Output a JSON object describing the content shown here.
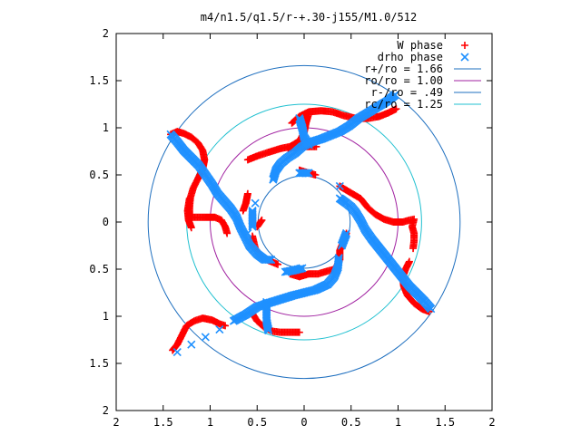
{
  "chart_data": {
    "type": "scatter",
    "title": "m4/n1.5/q1.5/r-+.30-j155/M1.0/512",
    "xlim": [
      -2,
      2
    ],
    "ylim": [
      -2,
      2
    ],
    "xtick_labels": [
      "2",
      "1.5",
      "1",
      "0.5",
      "0",
      "0.5",
      "1",
      "1.5",
      "2"
    ],
    "ytick_labels": [
      "2",
      "1.5",
      "1",
      "0.5",
      "0",
      "0.5",
      "1",
      "1.5",
      "2"
    ],
    "grid": false,
    "legend_position": "top-right",
    "series": [
      {
        "name": "W phase",
        "marker": "+",
        "color": "#ff0000",
        "points": [
          [
            -1.42,
            0.93
          ],
          [
            -1.35,
            0.96
          ],
          [
            -1.28,
            0.94
          ],
          [
            -1.2,
            0.9
          ],
          [
            -1.13,
            0.84
          ],
          [
            -1.08,
            0.76
          ],
          [
            -1.06,
            0.66
          ],
          [
            -1.08,
            0.56
          ],
          [
            -1.13,
            0.46
          ],
          [
            -1.18,
            0.36
          ],
          [
            -1.21,
            0.26
          ],
          [
            -1.22,
            0.15
          ],
          [
            -1.22,
            0.05
          ],
          [
            -1.15,
            0.05
          ],
          [
            -1.05,
            0.05
          ],
          [
            -0.95,
            0.05
          ],
          [
            -0.88,
            0.02
          ],
          [
            -0.84,
            -0.05
          ],
          [
            -0.82,
            -0.12
          ],
          [
            -1.22,
            0.25
          ],
          [
            -1.24,
            0.12
          ],
          [
            -1.23,
            0.02
          ],
          [
            -1.2,
            -0.06
          ],
          [
            -0.13,
            1.05
          ],
          [
            -0.05,
            1.12
          ],
          [
            0.05,
            1.17
          ],
          [
            0.18,
            1.18
          ],
          [
            0.3,
            1.17
          ],
          [
            0.42,
            1.13
          ],
          [
            0.55,
            1.1
          ],
          [
            0.68,
            1.1
          ],
          [
            0.8,
            1.12
          ],
          [
            0.9,
            1.16
          ],
          [
            0.98,
            1.2
          ],
          [
            -0.6,
            0.66
          ],
          [
            -0.5,
            0.7
          ],
          [
            -0.38,
            0.74
          ],
          [
            -0.25,
            0.78
          ],
          [
            -0.15,
            0.8
          ],
          [
            -0.05,
            0.86
          ],
          [
            0.0,
            0.95
          ],
          [
            0.02,
            1.05
          ],
          [
            0.05,
            1.15
          ],
          [
            -0.17,
            0.78
          ],
          [
            -0.05,
            0.8
          ],
          [
            0.05,
            0.8
          ],
          [
            0.13,
            0.8
          ],
          [
            -0.05,
            0.55
          ],
          [
            0.05,
            0.52
          ],
          [
            0.12,
            0.5
          ],
          [
            0.38,
            0.38
          ],
          [
            0.48,
            0.32
          ],
          [
            0.6,
            0.25
          ],
          [
            0.68,
            0.15
          ],
          [
            0.76,
            0.08
          ],
          [
            0.85,
            0.03
          ],
          [
            0.95,
            0.0
          ],
          [
            1.05,
            0.0
          ],
          [
            1.12,
            0.02
          ],
          [
            1.17,
            0.03
          ],
          [
            1.15,
            -0.05
          ],
          [
            1.17,
            -0.12
          ],
          [
            1.17,
            -0.2
          ],
          [
            1.16,
            -0.28
          ],
          [
            1.33,
            -0.95
          ],
          [
            1.25,
            -0.92
          ],
          [
            1.17,
            -0.86
          ],
          [
            1.1,
            -0.78
          ],
          [
            1.06,
            -0.68
          ],
          [
            1.05,
            -0.58
          ],
          [
            1.08,
            -0.5
          ],
          [
            1.12,
            -0.42
          ],
          [
            -1.4,
            -1.36
          ],
          [
            -1.35,
            -1.3
          ],
          [
            -1.3,
            -1.2
          ],
          [
            -1.25,
            -1.1
          ],
          [
            -1.17,
            -1.05
          ],
          [
            -1.08,
            -1.02
          ],
          [
            -0.98,
            -1.04
          ],
          [
            -0.9,
            -1.08
          ],
          [
            -0.84,
            -1.1
          ],
          [
            -0.05,
            -1.17
          ],
          [
            -0.15,
            -1.17
          ],
          [
            -0.25,
            -1.17
          ],
          [
            -0.33,
            -1.16
          ],
          [
            -0.42,
            -1.12
          ],
          [
            -0.5,
            -1.05
          ],
          [
            -0.55,
            -0.97
          ],
          [
            -0.55,
            -0.15
          ],
          [
            -0.52,
            -0.28
          ],
          [
            -0.45,
            -0.38
          ],
          [
            -0.35,
            -0.42
          ],
          [
            -0.28,
            -0.45
          ],
          [
            -0.15,
            -0.55
          ],
          [
            -0.05,
            -0.58
          ],
          [
            0.05,
            -0.55
          ],
          [
            0.15,
            -0.55
          ],
          [
            0.25,
            -0.52
          ],
          [
            0.33,
            -0.5
          ],
          [
            0.38,
            -0.4
          ],
          [
            0.38,
            -0.3
          ],
          [
            0.42,
            -0.2
          ],
          [
            0.45,
            -0.12
          ],
          [
            -0.45,
            0.02
          ],
          [
            -0.5,
            -0.05
          ],
          [
            -0.6,
            0.3
          ],
          [
            -0.62,
            0.2
          ],
          [
            -0.65,
            0.12
          ]
        ]
      },
      {
        "name": "drho phase",
        "marker": "x",
        "color": "#1e90ff",
        "points": [
          [
            -1.42,
            0.93
          ],
          [
            -1.35,
            0.85
          ],
          [
            -1.28,
            0.76
          ],
          [
            -1.2,
            0.68
          ],
          [
            -1.12,
            0.6
          ],
          [
            -1.05,
            0.5
          ],
          [
            -0.98,
            0.4
          ],
          [
            -0.92,
            0.3
          ],
          [
            -0.85,
            0.22
          ],
          [
            -0.78,
            0.14
          ],
          [
            -0.72,
            0.05
          ],
          [
            -0.68,
            -0.05
          ],
          [
            -0.63,
            -0.15
          ],
          [
            -0.58,
            -0.25
          ],
          [
            -0.5,
            -0.34
          ],
          [
            -0.42,
            -0.4
          ],
          [
            -0.35,
            -0.4
          ],
          [
            -0.55,
            -0.05
          ],
          [
            -0.55,
            0.05
          ],
          [
            -0.55,
            0.12
          ],
          [
            -0.02,
            -0.49
          ],
          [
            -0.1,
            -0.51
          ],
          [
            -0.2,
            -0.53
          ],
          [
            1.35,
            -0.92
          ],
          [
            1.28,
            -0.84
          ],
          [
            1.2,
            -0.76
          ],
          [
            1.12,
            -0.68
          ],
          [
            1.04,
            -0.58
          ],
          [
            0.96,
            -0.48
          ],
          [
            0.88,
            -0.38
          ],
          [
            0.8,
            -0.28
          ],
          [
            0.72,
            -0.18
          ],
          [
            0.65,
            -0.08
          ],
          [
            0.6,
            0.02
          ],
          [
            0.55,
            0.1
          ],
          [
            0.5,
            0.16
          ],
          [
            0.45,
            0.2
          ],
          [
            0.38,
            0.25
          ],
          [
            -1.35,
            -1.38
          ],
          [
            -1.2,
            -1.3
          ],
          [
            -1.05,
            -1.22
          ],
          [
            -0.9,
            -1.14
          ],
          [
            -0.75,
            -1.05
          ],
          [
            -0.62,
            -0.98
          ],
          [
            -0.5,
            -0.9
          ],
          [
            -0.38,
            -0.86
          ],
          [
            -0.25,
            -0.82
          ],
          [
            -0.12,
            -0.78
          ],
          [
            0.0,
            -0.75
          ],
          [
            0.12,
            -0.72
          ],
          [
            0.25,
            -0.66
          ],
          [
            0.32,
            -0.58
          ],
          [
            0.36,
            -0.48
          ],
          [
            0.37,
            -0.38
          ],
          [
            -0.4,
            -0.85
          ],
          [
            -0.4,
            -0.95
          ],
          [
            -0.4,
            -1.05
          ],
          [
            -0.38,
            -1.15
          ],
          [
            0.97,
            1.35
          ],
          [
            0.88,
            1.28
          ],
          [
            0.78,
            1.22
          ],
          [
            0.68,
            1.16
          ],
          [
            0.58,
            1.1
          ],
          [
            0.48,
            1.02
          ],
          [
            0.38,
            0.96
          ],
          [
            0.28,
            0.92
          ],
          [
            0.18,
            0.88
          ],
          [
            0.08,
            0.85
          ],
          [
            -0.02,
            0.8
          ],
          [
            -0.1,
            0.73
          ],
          [
            -0.18,
            0.68
          ],
          [
            -0.25,
            0.62
          ],
          [
            -0.3,
            0.55
          ],
          [
            -0.33,
            0.45
          ],
          [
            -0.05,
            1.1
          ],
          [
            -0.02,
            1.0
          ],
          [
            0.0,
            0.9
          ],
          [
            0.05,
            0.82
          ],
          [
            -0.05,
            0.52
          ],
          [
            0.05,
            0.52
          ],
          [
            0.38,
            0.38
          ],
          [
            0.45,
            -0.12
          ],
          [
            0.4,
            -0.25
          ],
          [
            -0.52,
            0.2
          ],
          [
            -0.6,
            -0.12
          ]
        ]
      }
    ],
    "circles": [
      {
        "name": "r+/ro = 1.66",
        "radius": 1.66,
        "color": "#1e6fbf"
      },
      {
        "name": "ro/ro = 1.00",
        "radius": 1.0,
        "color": "#a020a0"
      },
      {
        "name": "r-/ro = .49",
        "radius": 0.49,
        "color": "#1e6fbf"
      },
      {
        "name": "rc/ro = 1.25",
        "radius": 1.25,
        "color": "#20c0d0"
      }
    ]
  }
}
